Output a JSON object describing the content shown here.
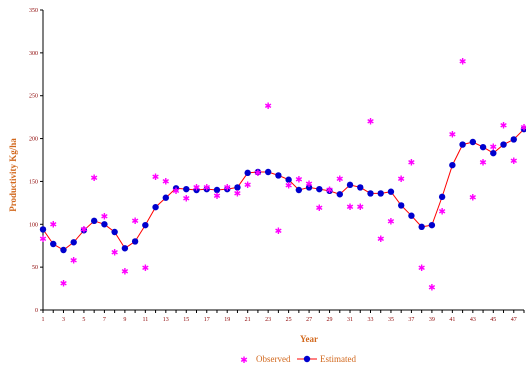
{
  "chart_data": {
    "type": "line",
    "xlabel": "Year",
    "ylabel": "Productivity Kg/ha",
    "xlim": [
      1,
      48
    ],
    "ylim": [
      0,
      350
    ],
    "y_ticks": [
      0,
      50,
      100,
      150,
      200,
      250,
      300,
      350
    ],
    "x_ticks": [
      1,
      3,
      5,
      7,
      9,
      11,
      13,
      15,
      17,
      19,
      21,
      23,
      25,
      27,
      29,
      31,
      33,
      35,
      37,
      39,
      41,
      43,
      45,
      47
    ],
    "grid": false,
    "legend_position": "bottom",
    "x": [
      1,
      2,
      3,
      4,
      5,
      6,
      7,
      8,
      9,
      10,
      11,
      12,
      13,
      14,
      15,
      16,
      17,
      18,
      19,
      20,
      21,
      22,
      23,
      24,
      25,
      26,
      27,
      28,
      29,
      30,
      31,
      32,
      33,
      34,
      35,
      36,
      37,
      38,
      39,
      40,
      41,
      42,
      43,
      44,
      45,
      46,
      47,
      48
    ],
    "series": [
      {
        "name": "Observed",
        "marker": "asterisk",
        "color": "#FF00FF",
        "values": [
          83,
          100,
          31,
          58,
          94,
          154,
          109,
          67,
          45,
          104,
          49,
          155,
          150,
          139,
          130,
          143,
          143,
          133,
          143,
          136,
          146,
          160,
          238,
          92,
          145,
          152,
          147,
          119,
          140,
          153,
          120,
          120,
          220,
          83,
          103,
          153,
          172,
          49,
          26,
          115,
          205,
          290,
          131,
          172,
          190,
          215,
          174,
          213
        ]
      },
      {
        "name": "Estimated",
        "marker": "circle",
        "color": "#0000CD",
        "line_color": "#FF0000",
        "values": [
          94,
          77,
          70,
          79,
          93,
          104,
          100,
          91,
          72,
          80,
          99,
          120,
          131,
          142,
          141,
          140,
          141,
          140,
          141,
          143,
          160,
          161,
          161,
          157,
          152,
          140,
          143,
          141,
          139,
          135,
          146,
          143,
          136,
          136,
          138,
          122,
          110,
          97,
          99,
          132,
          169,
          193,
          196,
          190,
          183,
          193,
          199,
          211
        ]
      }
    ]
  }
}
